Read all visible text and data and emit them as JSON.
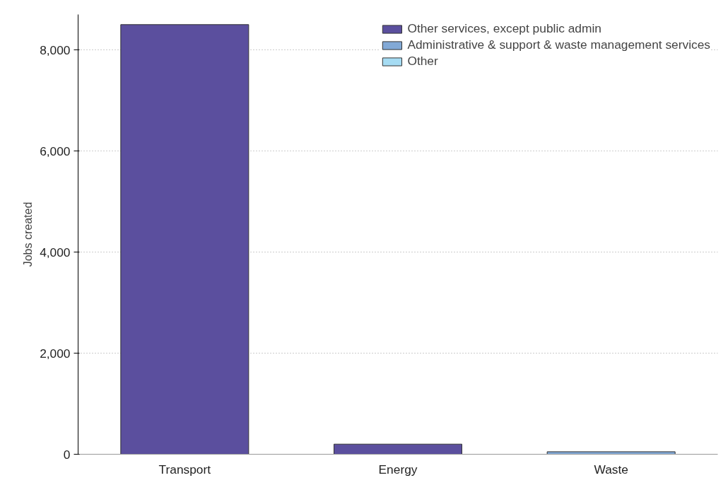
{
  "chart_data": {
    "type": "bar",
    "stacked": true,
    "ylabel": "Jobs created",
    "categories": [
      "Transport",
      "Energy",
      "Waste"
    ],
    "series": [
      {
        "name": "Other services, except public admin",
        "color": "#5b4f9e",
        "values": [
          8500,
          200,
          0
        ]
      },
      {
        "name": "Administrative & support & waste management services",
        "color": "#82a9d6",
        "values": [
          0,
          0,
          50
        ]
      },
      {
        "name": "Other",
        "color": "#a6dcf3",
        "values": [
          0,
          0,
          0
        ]
      }
    ],
    "ylim": [
      0,
      8700
    ],
    "yticks": [
      {
        "value": 0,
        "label": "0"
      },
      {
        "value": 2000,
        "label": "2,000"
      },
      {
        "value": 4000,
        "label": "4,000"
      },
      {
        "value": 6000,
        "label": "6,000"
      },
      {
        "value": 8000,
        "label": "8,000"
      }
    ],
    "grid": "y",
    "legend": "top right"
  }
}
